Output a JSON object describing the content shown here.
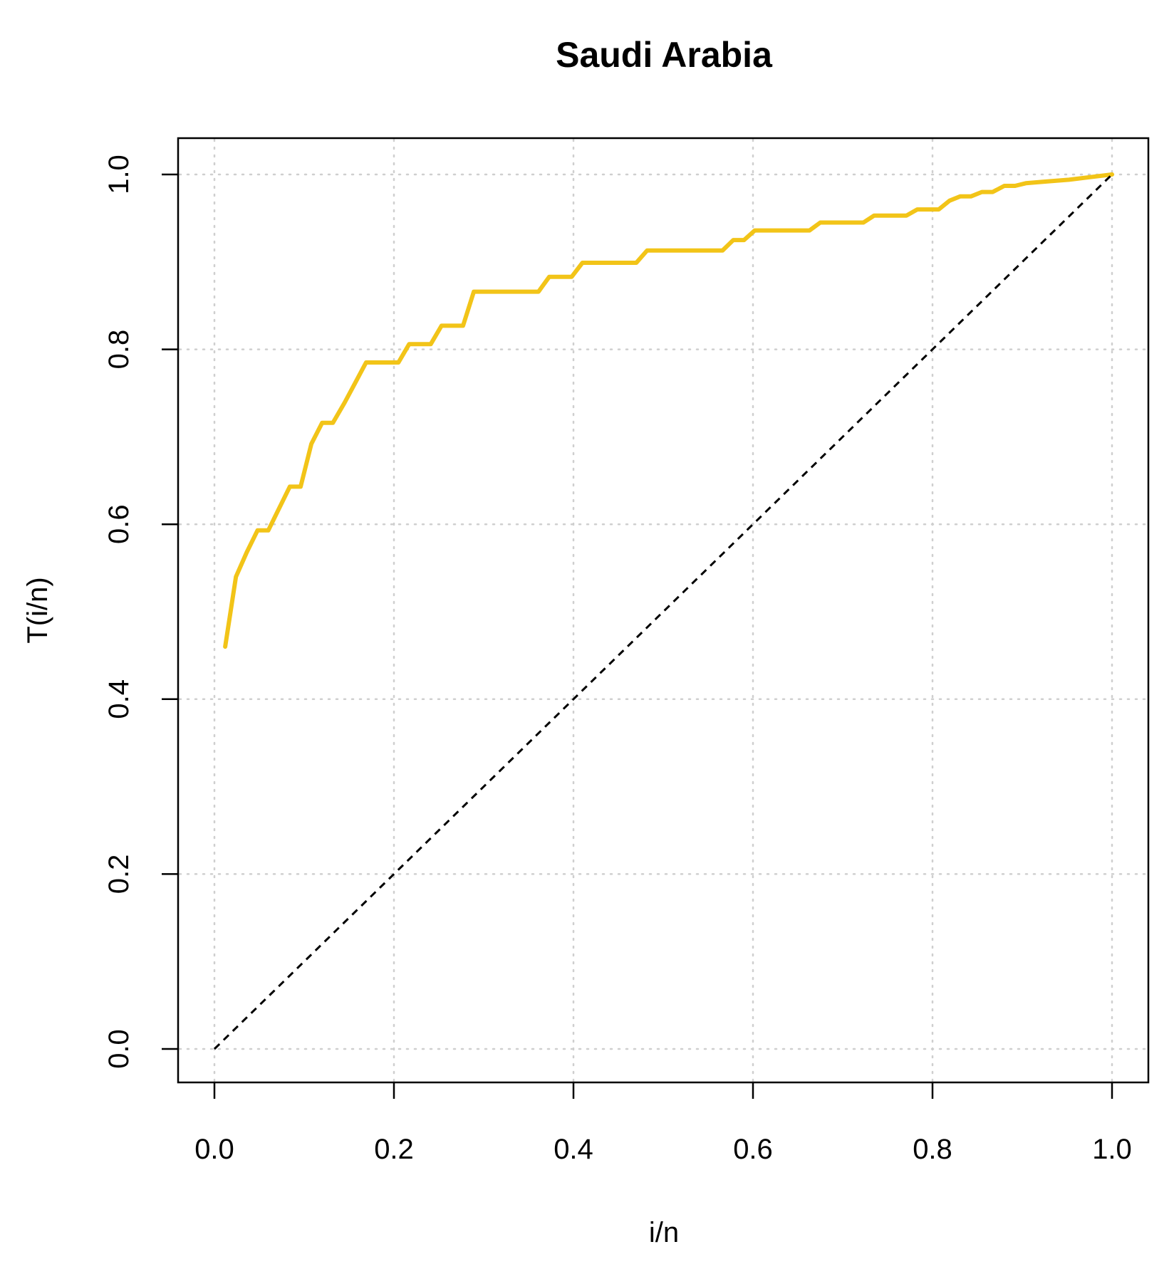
{
  "chart_data": {
    "type": "line",
    "title": "Saudi Arabia",
    "xlabel": "i/n",
    "ylabel": "T(i/n)",
    "xlim": [
      0,
      1
    ],
    "ylim": [
      0,
      1
    ],
    "grid": true,
    "x_ticks": [
      "0.0",
      "0.2",
      "0.4",
      "0.6",
      "0.8",
      "1.0"
    ],
    "y_ticks": [
      "0.0",
      "0.2",
      "0.4",
      "0.6",
      "0.8",
      "1.0"
    ],
    "series": [
      {
        "color": "#f2c418",
        "style": "solid",
        "points": [
          [
            0.012,
            0.46
          ],
          [
            0.024,
            0.54
          ],
          [
            0.036,
            0.568
          ],
          [
            0.048,
            0.593
          ],
          [
            0.06,
            0.593
          ],
          [
            0.072,
            0.618
          ],
          [
            0.084,
            0.643
          ],
          [
            0.096,
            0.643
          ],
          [
            0.108,
            0.692
          ],
          [
            0.12,
            0.716
          ],
          [
            0.132,
            0.716
          ],
          [
            0.145,
            0.739
          ],
          [
            0.157,
            0.762
          ],
          [
            0.169,
            0.785
          ],
          [
            0.181,
            0.785
          ],
          [
            0.205,
            0.785
          ],
          [
            0.217,
            0.806
          ],
          [
            0.241,
            0.806
          ],
          [
            0.253,
            0.827
          ],
          [
            0.277,
            0.827
          ],
          [
            0.289,
            0.866
          ],
          [
            0.361,
            0.866
          ],
          [
            0.373,
            0.883
          ],
          [
            0.398,
            0.883
          ],
          [
            0.41,
            0.899
          ],
          [
            0.47,
            0.899
          ],
          [
            0.482,
            0.913
          ],
          [
            0.566,
            0.913
          ],
          [
            0.578,
            0.925
          ],
          [
            0.59,
            0.925
          ],
          [
            0.602,
            0.936
          ],
          [
            0.663,
            0.936
          ],
          [
            0.675,
            0.945
          ],
          [
            0.723,
            0.945
          ],
          [
            0.735,
            0.953
          ],
          [
            0.771,
            0.953
          ],
          [
            0.783,
            0.96
          ],
          [
            0.807,
            0.96
          ],
          [
            0.819,
            0.97
          ],
          [
            0.831,
            0.975
          ],
          [
            0.843,
            0.975
          ],
          [
            0.855,
            0.98
          ],
          [
            0.867,
            0.98
          ],
          [
            0.88,
            0.987
          ],
          [
            0.892,
            0.987
          ],
          [
            0.904,
            0.99
          ],
          [
            0.928,
            0.992
          ],
          [
            0.952,
            0.994
          ],
          [
            0.976,
            0.997
          ],
          [
            1.0,
            1.0
          ]
        ]
      },
      {
        "color": "#000000",
        "style": "dashed",
        "points": [
          [
            0,
            0
          ],
          [
            1,
            1
          ]
        ]
      }
    ]
  }
}
